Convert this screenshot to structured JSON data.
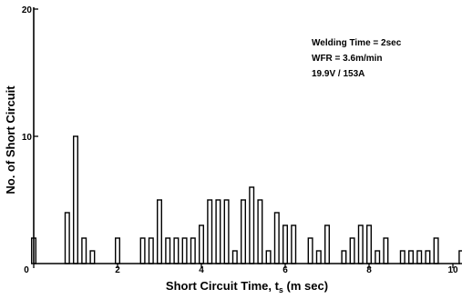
{
  "chart_data": {
    "type": "bar",
    "xlabel": "Short Circuit Time, t",
    "xlabel_subscript": "s",
    "xlabel_unit": " (m sec)",
    "ylabel": "No. of Short Circuit",
    "xlim": [
      0,
      10
    ],
    "ylim": [
      0,
      20
    ],
    "x_ticks": [
      0,
      2,
      4,
      6,
      8,
      10
    ],
    "y_ticks": [
      10,
      20
    ],
    "bin_width": 0.2,
    "grid": false,
    "annotations": [
      "Welding Time = 2sec",
      "WFR = 3.6m/min",
      "19.9V / 153A"
    ],
    "bins": [
      {
        "x": 0.0,
        "value": 2
      },
      {
        "x": 0.8,
        "value": 4
      },
      {
        "x": 1.0,
        "value": 10
      },
      {
        "x": 1.2,
        "value": 2
      },
      {
        "x": 1.4,
        "value": 1
      },
      {
        "x": 2.0,
        "value": 2
      },
      {
        "x": 2.6,
        "value": 2
      },
      {
        "x": 2.8,
        "value": 2
      },
      {
        "x": 3.0,
        "value": 5
      },
      {
        "x": 3.2,
        "value": 2
      },
      {
        "x": 3.4,
        "value": 2
      },
      {
        "x": 3.6,
        "value": 2
      },
      {
        "x": 3.8,
        "value": 2
      },
      {
        "x": 4.0,
        "value": 3
      },
      {
        "x": 4.2,
        "value": 5
      },
      {
        "x": 4.4,
        "value": 5
      },
      {
        "x": 4.6,
        "value": 5
      },
      {
        "x": 4.8,
        "value": 1
      },
      {
        "x": 5.0,
        "value": 5
      },
      {
        "x": 5.2,
        "value": 6
      },
      {
        "x": 5.4,
        "value": 5
      },
      {
        "x": 5.6,
        "value": 1
      },
      {
        "x": 5.8,
        "value": 4
      },
      {
        "x": 6.0,
        "value": 3
      },
      {
        "x": 6.2,
        "value": 3
      },
      {
        "x": 6.6,
        "value": 2
      },
      {
        "x": 6.8,
        "value": 1
      },
      {
        "x": 7.0,
        "value": 3
      },
      {
        "x": 7.4,
        "value": 1
      },
      {
        "x": 7.6,
        "value": 2
      },
      {
        "x": 7.8,
        "value": 3
      },
      {
        "x": 8.0,
        "value": 3
      },
      {
        "x": 8.2,
        "value": 1
      },
      {
        "x": 8.4,
        "value": 2
      },
      {
        "x": 8.8,
        "value": 1
      },
      {
        "x": 9.0,
        "value": 1
      },
      {
        "x": 9.2,
        "value": 1
      },
      {
        "x": 9.4,
        "value": 1
      },
      {
        "x": 9.6,
        "value": 2
      },
      {
        "x": 10.2,
        "value": 1
      }
    ]
  }
}
